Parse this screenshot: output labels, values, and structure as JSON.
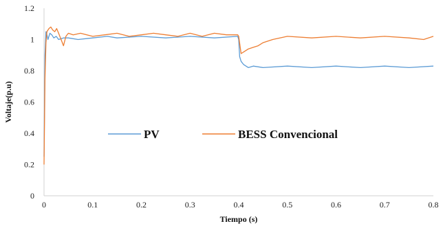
{
  "chart_data": {
    "type": "line",
    "title": "",
    "xlabel": "Tiempo (s)",
    "ylabel": "Voltaje(p.u)",
    "xlim": [
      0,
      0.8
    ],
    "ylim": [
      0,
      1.2
    ],
    "xticks": [
      0,
      0.1,
      0.2,
      0.3,
      0.4,
      0.5,
      0.6,
      0.7,
      0.8
    ],
    "xtick_labels": [
      "0",
      "0.1",
      "0.2",
      "0.3",
      "0.4",
      "0.5",
      "0.6",
      "0.7",
      "0.8"
    ],
    "yticks": [
      0,
      0.2,
      0.4,
      0.6,
      0.8,
      1.0,
      1.2
    ],
    "ytick_labels": [
      "0",
      "0.2",
      "0.4",
      "0.6",
      "0.8",
      "1",
      "1.2"
    ],
    "grid": false,
    "legend_position": "center",
    "series": [
      {
        "name": "PV",
        "color": "#5b9bd5",
        "x": [
          0,
          0.002,
          0.004,
          0.006,
          0.008,
          0.012,
          0.016,
          0.02,
          0.025,
          0.03,
          0.04,
          0.05,
          0.07,
          0.1,
          0.13,
          0.15,
          0.2,
          0.25,
          0.3,
          0.35,
          0.398,
          0.4,
          0.402,
          0.405,
          0.41,
          0.415,
          0.42,
          0.43,
          0.45,
          0.5,
          0.55,
          0.6,
          0.65,
          0.7,
          0.75,
          0.8
        ],
        "y": [
          0.25,
          0.9,
          1.05,
          1.03,
          1.0,
          1.04,
          1.03,
          1.01,
          1.02,
          1.0,
          1.01,
          1.01,
          1.0,
          1.01,
          1.02,
          1.01,
          1.02,
          1.01,
          1.02,
          1.01,
          1.02,
          1.0,
          0.89,
          0.86,
          0.84,
          0.83,
          0.82,
          0.83,
          0.82,
          0.83,
          0.82,
          0.83,
          0.82,
          0.83,
          0.82,
          0.83
        ]
      },
      {
        "name": "BESS Convencional",
        "color": "#ed7d31",
        "x": [
          0,
          0.002,
          0.004,
          0.006,
          0.01,
          0.014,
          0.018,
          0.022,
          0.026,
          0.03,
          0.035,
          0.04,
          0.045,
          0.05,
          0.06,
          0.075,
          0.1,
          0.125,
          0.15,
          0.175,
          0.2,
          0.225,
          0.25,
          0.275,
          0.3,
          0.325,
          0.35,
          0.375,
          0.398,
          0.4,
          0.405,
          0.41,
          0.42,
          0.43,
          0.44,
          0.45,
          0.47,
          0.5,
          0.55,
          0.6,
          0.65,
          0.7,
          0.75,
          0.78,
          0.8
        ],
        "y": [
          0.2,
          0.75,
          0.98,
          1.05,
          1.07,
          1.08,
          1.06,
          1.05,
          1.07,
          1.04,
          1.0,
          0.96,
          1.02,
          1.04,
          1.03,
          1.04,
          1.02,
          1.03,
          1.04,
          1.02,
          1.03,
          1.04,
          1.03,
          1.02,
          1.04,
          1.02,
          1.04,
          1.03,
          1.03,
          1.02,
          0.91,
          0.92,
          0.94,
          0.95,
          0.96,
          0.98,
          1.0,
          1.02,
          1.01,
          1.02,
          1.01,
          1.02,
          1.01,
          1.0,
          1.02
        ]
      }
    ]
  }
}
